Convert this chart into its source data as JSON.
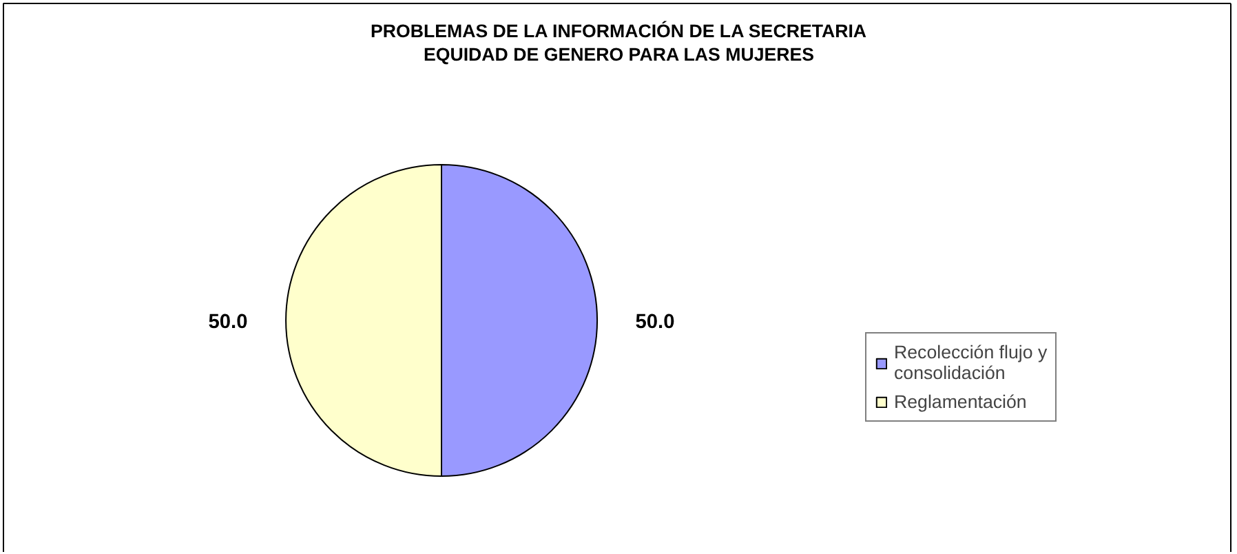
{
  "chart_data": {
    "type": "pie",
    "title": "PROBLEMAS DE LA INFORMACIÓN DE LA SECRETARIA EQUIDAD DE GENERO PARA LAS MUJERES",
    "categories": [
      "Recolección flujo y consolidación",
      "Reglamentación"
    ],
    "values": [
      50,
      50
    ],
    "colors": [
      "#9999ff",
      "#ffffcc"
    ],
    "value_labels": [
      "50.0",
      "50.0"
    ],
    "legend": "right"
  }
}
